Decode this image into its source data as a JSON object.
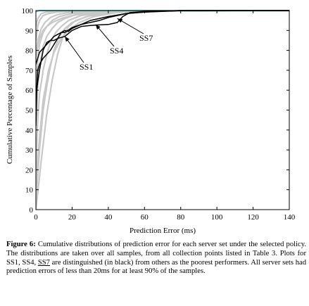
{
  "chart_data": {
    "type": "line",
    "xlabel": "Prediction Error (ms)",
    "ylabel": "Cumulative Percentage of Samples",
    "xlim": [
      0,
      140
    ],
    "ylim": [
      0,
      100
    ],
    "xticks": [
      0,
      20,
      40,
      60,
      80,
      100,
      120,
      140
    ],
    "yticks": [
      0,
      10,
      20,
      30,
      40,
      50,
      60,
      70,
      80,
      90,
      100
    ],
    "grid": false,
    "annotations": [
      {
        "text": "SS1",
        "x": 16,
        "y": 87
      },
      {
        "text": "SS4",
        "x": 33,
        "y": 93
      },
      {
        "text": "SS7",
        "x": 45,
        "y": 96
      }
    ],
    "series": [
      {
        "name": "SS1",
        "color": "#000000",
        "points": [
          [
            0,
            42
          ],
          [
            0.5,
            62
          ],
          [
            1,
            70
          ],
          [
            2,
            73
          ],
          [
            4,
            76
          ],
          [
            6,
            78
          ],
          [
            8,
            80
          ],
          [
            10,
            83
          ],
          [
            12,
            86
          ],
          [
            14,
            89
          ],
          [
            16,
            90
          ],
          [
            18,
            89.5
          ],
          [
            20,
            91
          ],
          [
            25,
            93
          ],
          [
            30,
            95
          ],
          [
            40,
            97
          ],
          [
            50,
            98.5
          ],
          [
            60,
            99.3
          ],
          [
            80,
            100
          ],
          [
            140,
            100
          ]
        ]
      },
      {
        "name": "SS4",
        "color": "#000000",
        "points": [
          [
            0,
            73
          ],
          [
            1,
            76
          ],
          [
            2,
            79
          ],
          [
            4,
            81
          ],
          [
            6,
            83
          ],
          [
            8,
            85
          ],
          [
            10,
            87
          ],
          [
            12,
            88
          ],
          [
            14,
            89
          ],
          [
            16,
            89
          ],
          [
            20,
            91.5
          ],
          [
            25,
            93
          ],
          [
            30,
            94
          ],
          [
            35,
            95
          ],
          [
            40,
            96.5
          ],
          [
            50,
            98.5
          ],
          [
            60,
            99.2
          ],
          [
            80,
            100
          ],
          [
            140,
            100
          ]
        ]
      },
      {
        "name": "SS7",
        "color": "#000000",
        "points": [
          [
            0,
            55
          ],
          [
            0.5,
            60
          ],
          [
            1,
            64
          ],
          [
            2,
            70
          ],
          [
            4,
            80
          ],
          [
            6,
            84
          ],
          [
            8,
            85
          ],
          [
            10,
            85
          ],
          [
            12,
            86
          ],
          [
            14,
            86.5
          ],
          [
            16,
            87
          ],
          [
            20,
            90
          ],
          [
            25,
            92
          ],
          [
            30,
            92.5
          ],
          [
            35,
            92.8
          ],
          [
            40,
            93
          ],
          [
            45,
            94
          ],
          [
            48,
            97
          ],
          [
            52,
            99
          ],
          [
            60,
            99.5
          ],
          [
            80,
            100
          ],
          [
            140,
            100
          ]
        ]
      },
      {
        "color": "#c8c8c8",
        "points": [
          [
            0,
            0
          ],
          [
            3,
            25
          ],
          [
            6,
            48
          ],
          [
            9,
            65
          ],
          [
            12,
            78
          ],
          [
            15,
            87
          ],
          [
            18,
            92
          ],
          [
            22,
            95
          ],
          [
            30,
            97.5
          ],
          [
            40,
            99
          ],
          [
            60,
            100
          ],
          [
            140,
            100
          ]
        ]
      },
      {
        "color": "#c8c8c8",
        "points": [
          [
            0,
            5
          ],
          [
            2,
            30
          ],
          [
            4,
            50
          ],
          [
            6,
            62
          ],
          [
            8,
            72
          ],
          [
            10,
            80
          ],
          [
            13,
            87
          ],
          [
            16,
            91
          ],
          [
            20,
            94
          ],
          [
            28,
            97
          ],
          [
            40,
            99
          ],
          [
            60,
            100
          ],
          [
            140,
            100
          ]
        ]
      },
      {
        "color": "#c8c8c8",
        "points": [
          [
            0,
            20
          ],
          [
            1,
            45
          ],
          [
            2,
            58
          ],
          [
            4,
            70
          ],
          [
            6,
            78
          ],
          [
            8,
            84
          ],
          [
            11,
            89
          ],
          [
            14,
            92
          ],
          [
            18,
            95
          ],
          [
            25,
            97.5
          ],
          [
            40,
            99.5
          ],
          [
            140,
            100
          ]
        ]
      },
      {
        "color": "#c8c8c8",
        "points": [
          [
            0,
            40
          ],
          [
            1,
            62
          ],
          [
            2,
            72
          ],
          [
            4,
            82
          ],
          [
            6,
            87
          ],
          [
            9,
            91
          ],
          [
            12,
            94
          ],
          [
            16,
            96
          ],
          [
            22,
            98
          ],
          [
            35,
            99.5
          ],
          [
            140,
            100
          ]
        ]
      },
      {
        "color": "#c8c8c8",
        "points": [
          [
            0,
            60
          ],
          [
            1,
            75
          ],
          [
            2,
            83
          ],
          [
            4,
            89
          ],
          [
            6,
            92
          ],
          [
            9,
            95
          ],
          [
            13,
            97
          ],
          [
            20,
            98.5
          ],
          [
            30,
            99.5
          ],
          [
            140,
            100
          ]
        ]
      },
      {
        "color": "#c8c8c8",
        "points": [
          [
            0,
            75
          ],
          [
            1,
            85
          ],
          [
            3,
            91
          ],
          [
            5,
            94
          ],
          [
            8,
            96.5
          ],
          [
            12,
            98
          ],
          [
            18,
            99
          ],
          [
            30,
            99.8
          ],
          [
            140,
            100
          ]
        ]
      },
      {
        "color": "#c8c8c8",
        "points": [
          [
            0,
            85
          ],
          [
            1,
            92
          ],
          [
            2,
            95
          ],
          [
            4,
            97.5
          ],
          [
            7,
            98.5
          ],
          [
            12,
            99.3
          ],
          [
            25,
            100
          ],
          [
            140,
            100
          ]
        ]
      },
      {
        "color": "#c8c8c8",
        "points": [
          [
            0,
            92
          ],
          [
            1,
            96
          ],
          [
            3,
            98.5
          ],
          [
            6,
            99.3
          ],
          [
            10,
            99.8
          ],
          [
            20,
            100
          ],
          [
            140,
            100
          ]
        ]
      },
      {
        "color": "#c8c8c8",
        "points": [
          [
            0,
            78
          ],
          [
            2,
            86
          ],
          [
            4,
            90
          ],
          [
            6,
            92
          ],
          [
            9,
            94
          ],
          [
            14,
            96
          ],
          [
            20,
            97.5
          ],
          [
            30,
            98.8
          ],
          [
            50,
            100
          ],
          [
            140,
            100
          ]
        ]
      },
      {
        "color": "#c8c8c8",
        "points": [
          [
            0,
            12
          ],
          [
            2,
            36
          ],
          [
            4,
            55
          ],
          [
            7,
            70
          ],
          [
            10,
            79
          ],
          [
            14,
            86
          ],
          [
            18,
            90
          ],
          [
            24,
            94
          ],
          [
            32,
            97
          ],
          [
            45,
            99
          ],
          [
            70,
            100
          ],
          [
            140,
            100
          ]
        ]
      },
      {
        "color": "#5ec8c8",
        "points": [
          [
            0,
            99.5
          ],
          [
            2,
            100
          ],
          [
            140,
            100
          ]
        ]
      }
    ]
  },
  "caption": {
    "label": "Figure 6:",
    "part1": " Cumulative distributions of prediction error for each server set under the selected policy. The distributions are taken over all samples, from all collection points listed in Table 3. Plots for SS1, SS4, ",
    "ss7": "SS7",
    "part2": " are distinguished (in black) from others as the poorest performers.  All server sets had prediction errors of less than 20ms for at least 90% of the samples."
  }
}
